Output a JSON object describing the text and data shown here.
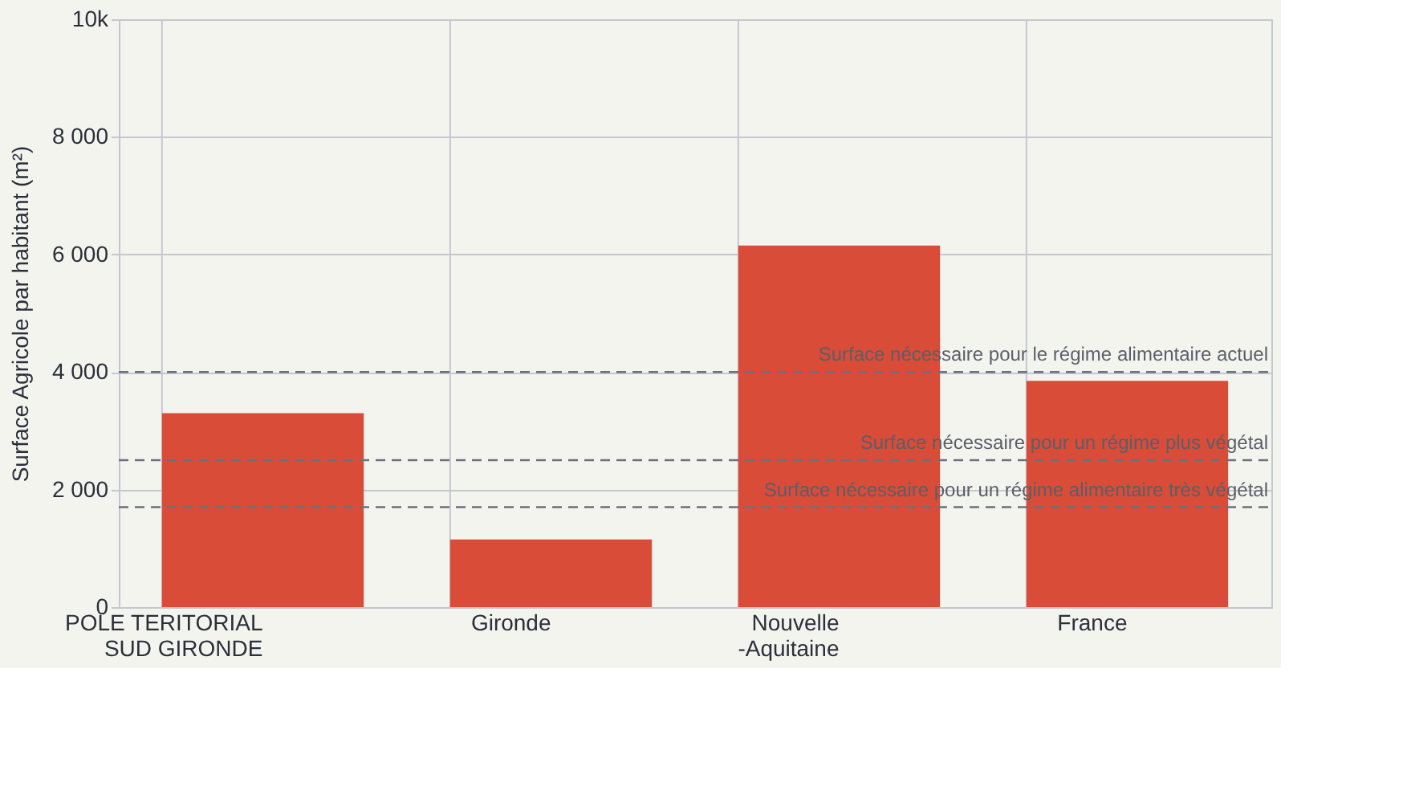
{
  "chart_data": {
    "type": "bar",
    "ylabel": "Surface Agricole par habitant (m²)",
    "categories": [
      "POLE TERITORIAL\nSUD GIRONDE",
      "Gironde",
      "Nouvelle\n-Aquitaine",
      "France"
    ],
    "values": [
      3300,
      1150,
      6150,
      3850
    ],
    "color": "#d94c38",
    "ylim": [
      0,
      10000
    ],
    "yticks": [
      0,
      {
        "value": 2000,
        "label": "2 000"
      },
      {
        "value": 4000,
        "label": "4 000"
      },
      {
        "value": 6000,
        "label": "6 000"
      },
      {
        "value": 8000,
        "label": "8 000"
      },
      {
        "value": 10000,
        "label": "10k"
      }
    ],
    "grid": true,
    "ref_lines": [
      {
        "axis": "y",
        "value": 4000,
        "label": "Surface nécessaire pour le régime alimentaire actuel",
        "color": "#6b7080",
        "line_style": "dashed"
      },
      {
        "axis": "y",
        "value": 2500,
        "label": "Surface nécessaire pour un régime plus végétal",
        "color": "#6b7080",
        "line_style": "dashed"
      },
      {
        "axis": "y",
        "value": 1700,
        "label": "Surface nécessaire pour un régime alimentaire très végétal",
        "color": "#6b7080",
        "line_style": "dashed"
      }
    ]
  }
}
